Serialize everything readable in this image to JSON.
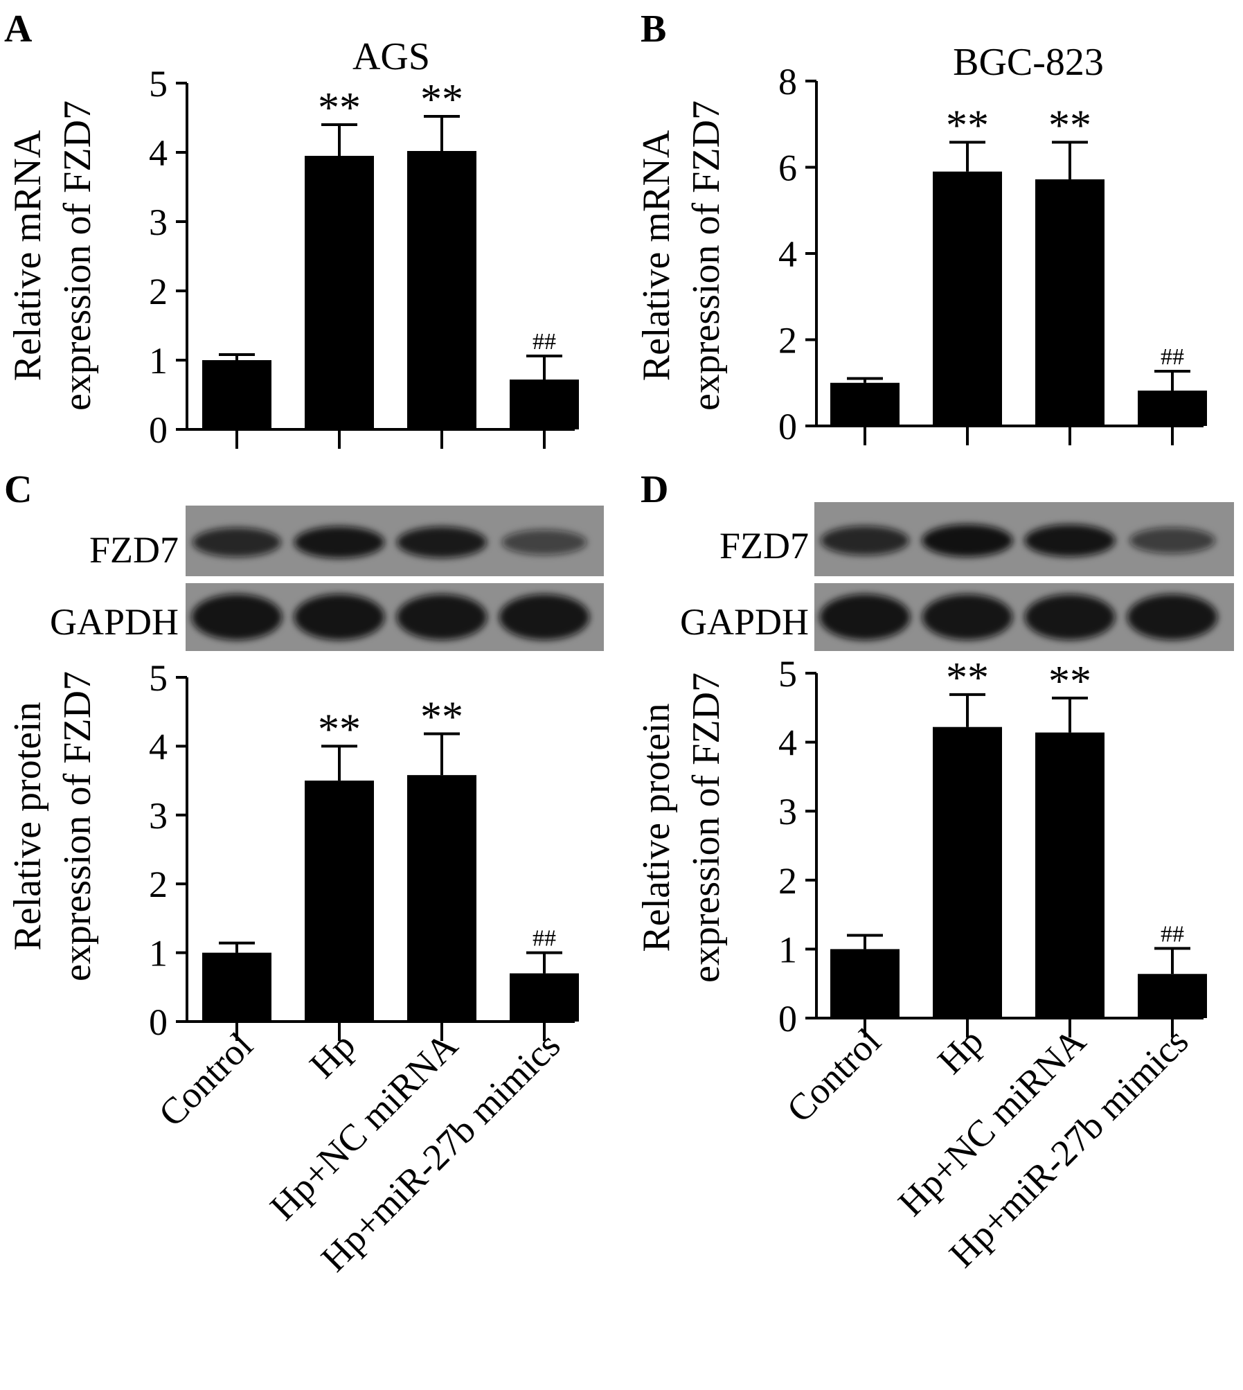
{
  "figure": {
    "categories": [
      "Control",
      "Hp",
      "Hp+NC miRNA",
      "Hp+miR-27b mimics"
    ]
  },
  "chart_data": [
    {
      "panel": "A",
      "type": "bar",
      "title": "AGS",
      "ylabel_lines": [
        "Relative mRNA",
        "expression of FZD7"
      ],
      "categories": [
        "Control",
        "Hp",
        "Hp+NC miRNA",
        "Hp+miR-27b mimics"
      ],
      "values": [
        1.0,
        3.95,
        4.02,
        0.72
      ],
      "errors": [
        0.08,
        0.45,
        0.5,
        0.34
      ],
      "annotations": [
        "",
        "**",
        "**",
        "##"
      ],
      "ylim": [
        0,
        5
      ],
      "yticks": [
        0,
        1,
        2,
        3,
        4,
        5
      ]
    },
    {
      "panel": "B",
      "type": "bar",
      "title": "BGC-823",
      "ylabel_lines": [
        "Relative mRNA",
        "expression of FZD7"
      ],
      "categories": [
        "Control",
        "Hp",
        "Hp+NC miRNA",
        "Hp+miR-27b mimics"
      ],
      "values": [
        1.0,
        5.9,
        5.72,
        0.82
      ],
      "errors": [
        0.1,
        0.68,
        0.86,
        0.45
      ],
      "annotations": [
        "",
        "**",
        "**",
        "##"
      ],
      "ylim": [
        0,
        8
      ],
      "yticks": [
        0,
        2,
        4,
        6,
        8
      ]
    },
    {
      "panel": "C",
      "type": "bar",
      "title": "",
      "ylabel_lines": [
        "Relative protein",
        "expression of FZD7"
      ],
      "categories": [
        "Control",
        "Hp",
        "Hp+NC miRNA",
        "Hp+miR-27b mimics"
      ],
      "values": [
        1.0,
        3.5,
        3.58,
        0.7
      ],
      "errors": [
        0.14,
        0.5,
        0.6,
        0.3
      ],
      "annotations": [
        "",
        "**",
        "**",
        "##"
      ],
      "ylim": [
        0,
        5
      ],
      "yticks": [
        0,
        1,
        2,
        3,
        4,
        5
      ],
      "blot_labels": [
        "FZD7",
        "GAPDH"
      ]
    },
    {
      "panel": "D",
      "type": "bar",
      "title": "",
      "ylabel_lines": [
        "Relative protein",
        "expression of FZD7"
      ],
      "categories": [
        "Control",
        "Hp",
        "Hp+NC miRNA",
        "Hp+miR-27b mimics"
      ],
      "values": [
        1.0,
        4.22,
        4.14,
        0.64
      ],
      "errors": [
        0.2,
        0.47,
        0.5,
        0.37
      ],
      "annotations": [
        "",
        "**",
        "**",
        "##"
      ],
      "ylim": [
        0,
        5
      ],
      "yticks": [
        0,
        1,
        2,
        3,
        4,
        5
      ],
      "blot_labels": [
        "FZD7",
        "GAPDH"
      ]
    }
  ],
  "blots": {
    "C": {
      "FZD7": [
        0.72,
        0.9,
        0.86,
        0.42
      ],
      "GAPDH": [
        0.92,
        0.92,
        0.9,
        0.9
      ]
    },
    "D": {
      "FZD7": [
        0.72,
        0.95,
        0.93,
        0.48
      ],
      "GAPDH": [
        0.92,
        0.9,
        0.9,
        0.9
      ]
    }
  },
  "colors": {
    "bar": "#000000",
    "axis": "#000000",
    "blot_bg": "#8f8f8f",
    "band": "#111111"
  }
}
